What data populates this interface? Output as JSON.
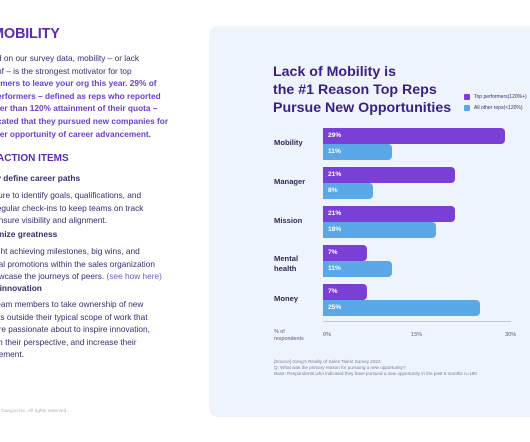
{
  "left": {
    "heading": "MOBILITY",
    "intro_lines": [
      {
        "text": "d on our survey data, mobility – or lack",
        "highlight": false
      },
      {
        "text": "of – is the strongest motivator for top",
        "highlight": false
      },
      {
        "text": "rmers to leave your org this year. 29% of",
        "highlight": true
      },
      {
        "text": "erformers – defined as reps who reported",
        "highlight": true
      },
      {
        "text": "ter than 120% attainment of their quota –",
        "highlight": true
      },
      {
        "text": "cated that they pursued new companies for",
        "highlight": true
      },
      {
        "text": "ter opportunity of career advancement.",
        "highlight": true
      }
    ],
    "actions_title": "ACTION ITEMS",
    "steps": [
      {
        "title": "ly define career paths",
        "lines": [
          "sure to identify goals, qualifications, and",
          "regular check-ins to keep teams on track",
          "ensure visibility and alignment."
        ]
      },
      {
        "title": "gnize greatness",
        "lines": [
          "ight achieving milestones, big wins, and",
          "nal promotions within the sales organization",
          "owcase the journeys of peers."
        ],
        "link": "(see how here)"
      },
      {
        "title": "r innovation",
        "lines": [
          "team members to take ownership of new",
          "cts outside their typical scope of work that",
          "are passionate about to inspire innovation,",
          "sh their perspective, and increase their",
          "gement."
        ]
      }
    ],
    "footer": "Gong.io Inc. All rights reserved."
  },
  "colors": {
    "top": "#7a3fd6",
    "other": "#5aa8e8",
    "title": "#3a1e86",
    "card": "#eef4fb"
  },
  "chart_data": {
    "type": "bar",
    "orientation": "horizontal",
    "title_lines": [
      "Lack of Mobility is",
      "the #1 Reason Top Reps",
      "Pursue New Opportunities"
    ],
    "categories": [
      [
        "Mobility"
      ],
      [
        "Manager"
      ],
      [
        "Mission"
      ],
      [
        "Mental",
        "health"
      ],
      [
        "Money"
      ]
    ],
    "series": [
      {
        "name": "Top performers(120%+)",
        "values": [
          29,
          21,
          21,
          7,
          7
        ],
        "color": "#7a3fd6"
      },
      {
        "name": "All other reps(<120%)",
        "values": [
          11,
          8,
          18,
          11,
          25
        ],
        "color": "#5aa8e8"
      }
    ],
    "value_suffix": "%",
    "xlim": [
      0,
      30
    ],
    "xticks": [
      "0%",
      "15%",
      "30%"
    ],
    "ylabel_lines": [
      "% of",
      "respondents"
    ],
    "legend": "top-right",
    "grid": false,
    "source_lines": [
      "[Source] Gong's Reality of Sales Talent Survey 2022",
      "Q: What was the primary reason for pursuing a new opportunity?",
      "Base: Respondents who indicated they have pursued a new opportunity in the past 6 months n=190"
    ]
  }
}
